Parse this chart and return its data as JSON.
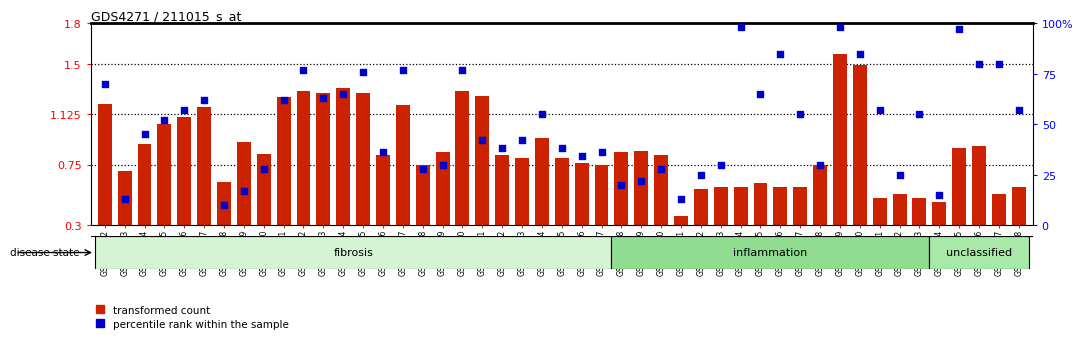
{
  "title": "GDS4271 / 211015_s_at",
  "samples": [
    "GSM380382",
    "GSM380383",
    "GSM380384",
    "GSM380385",
    "GSM380386",
    "GSM380387",
    "GSM380388",
    "GSM380389",
    "GSM380390",
    "GSM380391",
    "GSM380392",
    "GSM380393",
    "GSM380394",
    "GSM380395",
    "GSM380396",
    "GSM380397",
    "GSM380398",
    "GSM380399",
    "GSM380400",
    "GSM380401",
    "GSM380402",
    "GSM380403",
    "GSM380404",
    "GSM380405",
    "GSM380406",
    "GSM380407",
    "GSM380408",
    "GSM380409",
    "GSM380410",
    "GSM380411",
    "GSM380412",
    "GSM380413",
    "GSM380414",
    "GSM380415",
    "GSM380416",
    "GSM380417",
    "GSM380418",
    "GSM380419",
    "GSM380420",
    "GSM380421",
    "GSM380422",
    "GSM380423",
    "GSM380424",
    "GSM380425",
    "GSM380426",
    "GSM380427",
    "GSM380428"
  ],
  "transformed_count": [
    1.2,
    0.7,
    0.9,
    1.05,
    1.1,
    1.18,
    0.62,
    0.92,
    0.83,
    1.25,
    1.3,
    1.28,
    1.32,
    1.28,
    0.82,
    1.19,
    0.75,
    0.84,
    1.3,
    1.26,
    0.82,
    0.8,
    0.95,
    0.8,
    0.76,
    0.75,
    0.84,
    0.85,
    0.82,
    0.37,
    0.57,
    0.58,
    0.58,
    0.61,
    0.58,
    0.58,
    0.75,
    1.57,
    1.49,
    0.5,
    0.53,
    0.5,
    0.47,
    0.87,
    0.89,
    0.53,
    0.58
  ],
  "percentile_rank": [
    70,
    13,
    45,
    52,
    57,
    62,
    10,
    17,
    28,
    62,
    77,
    63,
    65,
    76,
    36,
    77,
    28,
    30,
    77,
    42,
    38,
    42,
    55,
    38,
    34,
    36,
    20,
    22,
    28,
    13,
    25,
    30,
    98,
    65,
    85,
    55,
    30,
    98,
    85,
    57,
    25,
    55,
    15,
    97,
    80,
    80,
    57
  ],
  "groups": [
    {
      "label": "fibrosis",
      "start": 0,
      "end": 25,
      "color": "#d4f4d4"
    },
    {
      "label": "inflammation",
      "start": 26,
      "end": 41,
      "color": "#90dc90"
    },
    {
      "label": "unclassified",
      "start": 42,
      "end": 46,
      "color": "#a8e8a8"
    }
  ],
  "bar_color": "#cc2200",
  "marker_color": "#0000cc",
  "left_ylim": [
    0.3,
    1.8
  ],
  "right_ylim": [
    0,
    100
  ],
  "left_yticks": [
    0.3,
    0.75,
    1.125,
    1.5,
    1.8
  ],
  "left_ytick_labels": [
    "0.3",
    "0.75",
    "1.125",
    "1.5",
    "1.8"
  ],
  "right_yticks": [
    0,
    25,
    50,
    75,
    100
  ],
  "right_ytick_labels": [
    "0",
    "25",
    "50",
    "75",
    "100%"
  ],
  "hlines": [
    0.75,
    1.125,
    1.5
  ],
  "legend_label_bar": "transformed count",
  "legend_label_scatter": "percentile rank within the sample",
  "disease_state_label": "disease state"
}
